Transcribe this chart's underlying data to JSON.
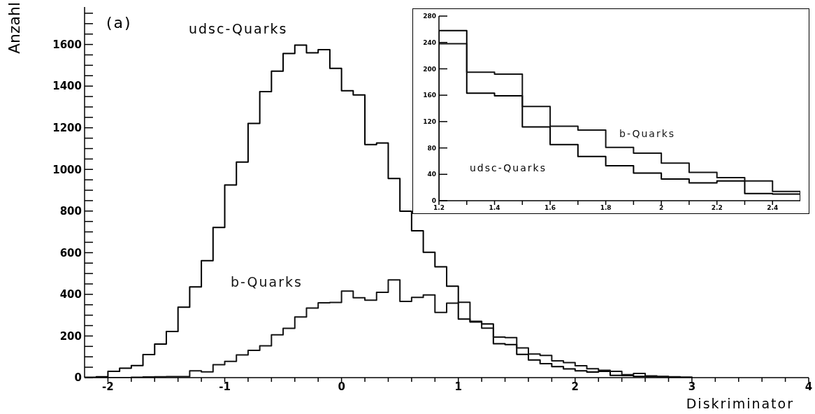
{
  "chart_data": [
    {
      "type": "histogram",
      "xlabel": "Diskriminator",
      "ylabel": "Anzahl",
      "annotations": [
        "(a)"
      ],
      "bins": [
        -2.2,
        -2.1,
        -2.0,
        -1.9,
        -1.8,
        -1.7,
        -1.6,
        -1.5,
        -1.4,
        -1.3,
        -1.2,
        -1.1,
        -1.0,
        -0.9,
        -0.8,
        -0.7,
        -0.6,
        -0.5,
        -0.4,
        -0.3,
        -0.2,
        -0.1,
        0.0,
        0.1,
        0.2,
        0.3,
        0.4,
        0.5,
        0.6,
        0.7,
        0.8,
        0.9,
        1.0,
        1.1,
        1.2,
        1.3,
        1.4,
        1.5,
        1.6,
        1.7,
        1.8,
        1.9,
        2.0,
        2.1,
        2.2,
        2.3,
        2.4,
        2.5,
        2.6,
        2.7,
        2.8,
        2.9,
        3.0
      ],
      "xlim": [
        -2.2,
        4
      ],
      "xticks": [
        -2,
        {
          "value": -1.8,
          "label": null
        },
        {
          "value": -1.6,
          "label": null
        },
        {
          "value": -1.4,
          "label": null
        },
        {
          "value": -1.2,
          "label": null
        },
        -1,
        {
          "value": -0.8,
          "label": null
        },
        {
          "value": -0.6,
          "label": null
        },
        {
          "value": -0.4,
          "label": null
        },
        {
          "value": -0.2,
          "label": null
        },
        0,
        {
          "value": 0.2,
          "label": null
        },
        {
          "value": 0.4,
          "label": null
        },
        {
          "value": 0.6,
          "label": null
        },
        {
          "value": 0.8,
          "label": null
        },
        1,
        {
          "value": 1.2,
          "label": null
        },
        {
          "value": 1.4,
          "label": null
        },
        {
          "value": 1.6,
          "label": null
        },
        {
          "value": 1.8,
          "label": null
        },
        2,
        {
          "value": 2.2,
          "label": null
        },
        {
          "value": 2.4,
          "label": null
        },
        {
          "value": 2.6,
          "label": null
        },
        {
          "value": 2.8,
          "label": null
        },
        3,
        {
          "value": 3.2,
          "label": null
        },
        {
          "value": 3.4,
          "label": null
        },
        {
          "value": 3.6,
          "label": null
        },
        {
          "value": 3.8,
          "label": null
        },
        4
      ],
      "ylim": [
        0,
        1780
      ],
      "yticks": [
        0,
        {
          "value": 50,
          "label": null
        },
        {
          "value": 100,
          "label": null
        },
        {
          "value": 150,
          "label": null
        },
        200,
        {
          "value": 250,
          "label": null
        },
        {
          "value": 300,
          "label": null
        },
        {
          "value": 350,
          "label": null
        },
        400,
        {
          "value": 450,
          "label": null
        },
        {
          "value": 500,
          "label": null
        },
        {
          "value": 550,
          "label": null
        },
        600,
        {
          "value": 650,
          "label": null
        },
        {
          "value": 700,
          "label": null
        },
        {
          "value": 750,
          "label": null
        },
        800,
        {
          "value": 850,
          "label": null
        },
        {
          "value": 900,
          "label": null
        },
        {
          "value": 950,
          "label": null
        },
        1000,
        {
          "value": 1050,
          "label": null
        },
        {
          "value": 1100,
          "label": null
        },
        {
          "value": 1150,
          "label": null
        },
        1200,
        {
          "value": 1250,
          "label": null
        },
        {
          "value": 1300,
          "label": null
        },
        {
          "value": 1350,
          "label": null
        },
        1400,
        {
          "value": 1450,
          "label": null
        },
        {
          "value": 1500,
          "label": null
        },
        {
          "value": 1550,
          "label": null
        },
        1600,
        {
          "value": 1650,
          "label": null
        },
        {
          "value": 1700,
          "label": null
        },
        {
          "value": 1750,
          "label": null
        }
      ],
      "series": [
        {
          "name": "udsc-Quarks",
          "color": "#000000",
          "values": [
            2,
            4,
            30,
            45,
            58,
            111,
            161,
            222,
            338,
            436,
            562,
            721,
            925,
            1035,
            1221,
            1374,
            1472,
            1557,
            1597,
            1560,
            1575,
            1485,
            1378,
            1358,
            1119,
            1127,
            956,
            799,
            705,
            602,
            532,
            439,
            281,
            270,
            258,
            163,
            159,
            112,
            85,
            67,
            53,
            42,
            33,
            27,
            30,
            11,
            10,
            6,
            5,
            4,
            3,
            2
          ]
        },
        {
          "name": "b-Quarks",
          "color": "#141414",
          "values": [
            0,
            0,
            0,
            0,
            2,
            3,
            4,
            5,
            5,
            33,
            28,
            62,
            78,
            109,
            131,
            153,
            206,
            237,
            291,
            334,
            359,
            361,
            416,
            384,
            372,
            410,
            469,
            366,
            385,
            397,
            313,
            358,
            362,
            267,
            238,
            195,
            192,
            143,
            113,
            107,
            81,
            72,
            57,
            43,
            35,
            30,
            14,
            20,
            8,
            6,
            4,
            2
          ]
        }
      ]
    },
    {
      "type": "histogram",
      "bins": [
        1.2,
        1.3,
        1.4,
        1.5,
        1.6,
        1.7,
        1.8,
        1.9,
        2.0,
        2.1,
        2.2,
        2.3,
        2.4,
        2.5
      ],
      "xlim": [
        1.2,
        2.5
      ],
      "xticks": [
        1.2,
        {
          "value": 1.3,
          "label": null
        },
        1.4,
        {
          "value": 1.5,
          "label": null
        },
        1.6,
        {
          "value": 1.7,
          "label": null
        },
        1.8,
        {
          "value": 1.9,
          "label": null
        },
        2,
        {
          "value": 2.1,
          "label": null
        },
        2.2,
        {
          "value": 2.3,
          "label": null
        },
        2.4
      ],
      "ylim": [
        0,
        280
      ],
      "yticks": [
        0,
        40,
        80,
        120,
        160,
        200,
        240,
        280
      ],
      "series": [
        {
          "name": "udsc-Quarks",
          "color": "#000000",
          "values": [
            258,
            163,
            159,
            112,
            85,
            67,
            53,
            42,
            33,
            27,
            30,
            11,
            10
          ]
        },
        {
          "name": "b-Quarks",
          "color": "#141414",
          "values": [
            238,
            195,
            192,
            143,
            113,
            107,
            81,
            72,
            57,
            43,
            35,
            30,
            14
          ]
        }
      ]
    }
  ]
}
